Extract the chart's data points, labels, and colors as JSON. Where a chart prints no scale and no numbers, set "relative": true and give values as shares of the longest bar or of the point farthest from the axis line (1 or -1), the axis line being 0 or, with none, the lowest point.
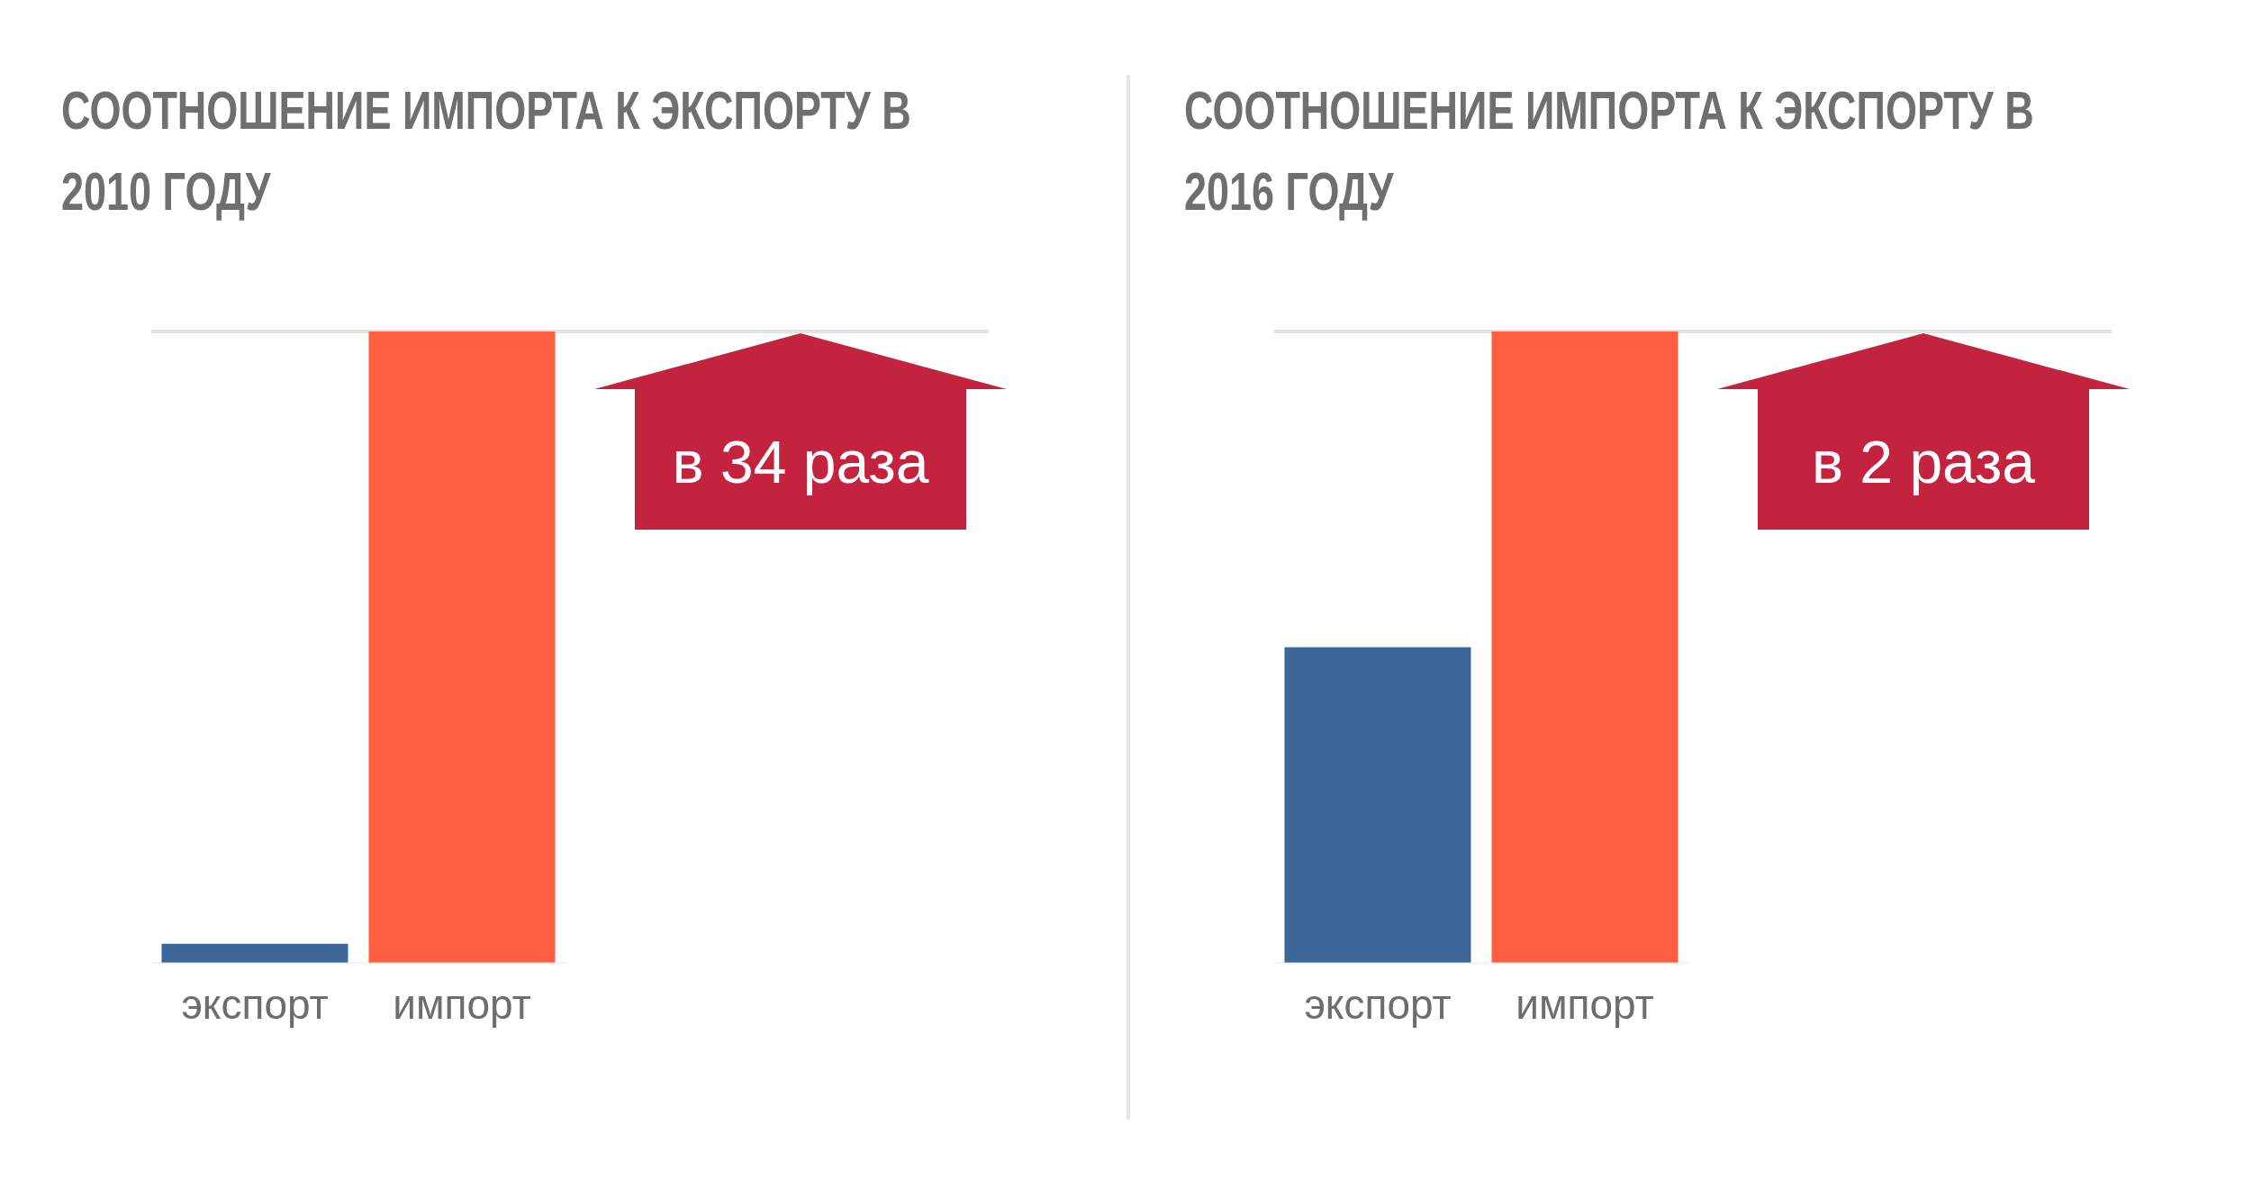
{
  "chart_data": [
    {
      "type": "bar",
      "title": "СООТНОШЕНИЕ ИМПОРТА К ЭКСПОРТУ В 2010 ГОДУ",
      "categories": [
        "экспорт",
        "импорт"
      ],
      "values": [
        0.03,
        1
      ],
      "colors": [
        "#3b6899",
        "#ff5f3f"
      ],
      "relative": true,
      "legend": false,
      "grid": false,
      "ref_lines": [
        {
          "axis": "y",
          "value": 1,
          "color": "#e3e3e3"
        }
      ],
      "annotations": [
        "в 34 раза"
      ]
    },
    {
      "type": "bar",
      "title": "СООТНОШЕНИЕ ИМПОРТА К ЭКСПОРТУ В 2016 ГОДУ",
      "categories": [
        "экспорт",
        "импорт"
      ],
      "values": [
        0.5,
        1
      ],
      "colors": [
        "#3b6899",
        "#ff5f3f"
      ],
      "relative": true,
      "legend": false,
      "grid": false,
      "ref_lines": [
        {
          "axis": "y",
          "value": 1,
          "color": "#e3e3e3"
        }
      ],
      "annotations": [
        "в 2 раза"
      ]
    }
  ]
}
